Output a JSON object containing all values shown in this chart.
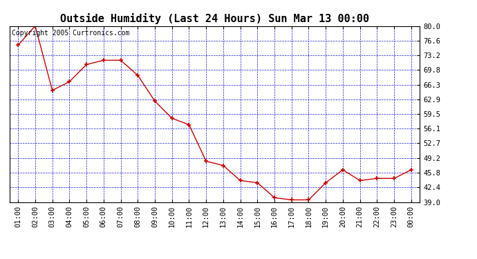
{
  "title": "Outside Humidity (Last 24 Hours) Sun Mar 13 00:00",
  "copyright": "Copyright 2005 Curtronics.com",
  "x_labels": [
    "01:00",
    "02:00",
    "03:00",
    "04:00",
    "05:00",
    "06:00",
    "07:00",
    "08:00",
    "09:00",
    "10:00",
    "11:00",
    "12:00",
    "13:00",
    "14:00",
    "15:00",
    "16:00",
    "17:00",
    "18:00",
    "19:00",
    "20:00",
    "21:00",
    "22:00",
    "23:00",
    "00:00"
  ],
  "x_values": [
    1,
    2,
    3,
    4,
    5,
    6,
    7,
    8,
    9,
    10,
    11,
    12,
    13,
    14,
    15,
    16,
    17,
    18,
    19,
    20,
    21,
    22,
    23,
    24
  ],
  "y_values": [
    75.5,
    80.0,
    65.0,
    67.0,
    71.0,
    72.0,
    72.0,
    68.5,
    62.5,
    58.5,
    57.0,
    48.5,
    47.5,
    44.0,
    43.5,
    40.0,
    39.5,
    39.5,
    43.5,
    46.5,
    44.0,
    44.5,
    44.5,
    46.5
  ],
  "ylim": [
    39.0,
    80.0
  ],
  "yticks": [
    39.0,
    42.4,
    45.8,
    49.2,
    52.7,
    56.1,
    59.5,
    62.9,
    66.3,
    69.8,
    73.2,
    76.6,
    80.0
  ],
  "line_color": "#cc0000",
  "marker_color": "#cc0000",
  "plot_bg_color": "#ffffff",
  "outer_bg_color": "#ffffff",
  "grid_color": "#0000cc",
  "title_fontsize": 11,
  "copyright_fontsize": 7,
  "tick_fontsize": 7.5
}
